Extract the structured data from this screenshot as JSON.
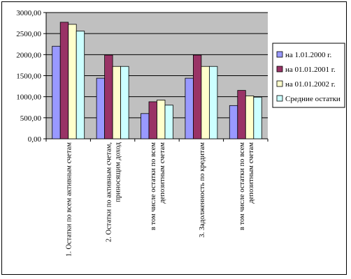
{
  "chart_data": {
    "type": "bar",
    "title": "",
    "xlabel": "",
    "ylabel": "",
    "ylim": [
      0,
      3000
    ],
    "yticks": [
      "0,00",
      "500,00",
      "1000,00",
      "1500,00",
      "2000,00",
      "2500,00",
      "3000,00"
    ],
    "grid": true,
    "legend_position": "right",
    "categories": [
      [
        "1. Остатки по всем активным счетам"
      ],
      [
        "2. Остатки по активным счетам,",
        "приносящим доход"
      ],
      [
        "в том числе остатки по всем",
        "депозитным счетам"
      ],
      [
        "3. Задолженность по кредитам"
      ],
      [
        "в том числе остатки по всем",
        "депозитным счетам"
      ]
    ],
    "series": [
      {
        "name": "на 1.01.2000 г.",
        "color": "#9999FF",
        "values": [
          2200,
          1440,
          600,
          1440,
          790
        ]
      },
      {
        "name": "на 01.01.2001 г.",
        "color": "#993366",
        "values": [
          2770,
          1990,
          880,
          1990,
          1150
        ]
      },
      {
        "name": "на 01.01.2002 г.",
        "color": "#FFFFCC",
        "values": [
          2720,
          1720,
          920,
          1720,
          1020
        ]
      },
      {
        "name": "Средние остатки",
        "color": "#CCFFFF",
        "values": [
          2560,
          1720,
          800,
          1720,
          990
        ]
      }
    ],
    "plot_background": "#C0C0C0"
  }
}
